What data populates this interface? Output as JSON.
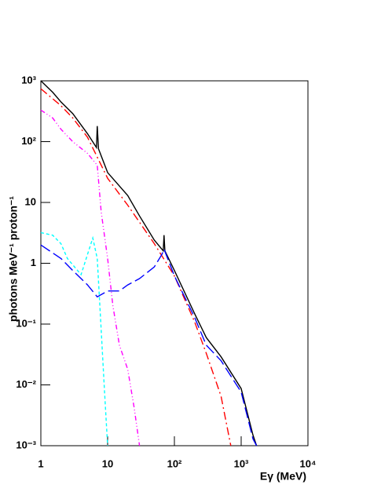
{
  "chart_data": {
    "type": "line",
    "xlabel": "Eγ (MeV)",
    "ylabel": "photons MeV⁻¹ proton⁻¹",
    "xscale": "log",
    "yscale": "log",
    "xlim": [
      1,
      10000
    ],
    "ylim": [
      0.001,
      1000
    ],
    "xticks": [
      1,
      10,
      {
        "value": 100,
        "label": "10²"
      },
      {
        "value": 1000,
        "label": "10³"
      },
      {
        "value": 10000,
        "label": "10⁴"
      }
    ],
    "yticks": [
      {
        "value": 0.001,
        "label": "10⁻³"
      },
      {
        "value": 0.01,
        "label": "10⁻²"
      },
      {
        "value": 0.1,
        "label": "10⁻¹"
      },
      1,
      10,
      {
        "value": 100,
        "label": "10²"
      },
      {
        "value": 1000,
        "label": "10³"
      }
    ],
    "series": [
      {
        "color": "#000000",
        "dash": "solid",
        "x": [
          1,
          1.5,
          2,
          3,
          5,
          6.8,
          7,
          7.3,
          10,
          20,
          30,
          50,
          68,
          70,
          72,
          100,
          200,
          300,
          500,
          1000,
          1500,
          1700
        ],
        "values": [
          1000,
          650,
          450,
          290,
          135,
          80,
          180,
          76,
          31,
          13,
          6,
          2.4,
          1.6,
          2.9,
          1.6,
          0.76,
          0.15,
          0.06,
          0.029,
          0.0087,
          0.0015,
          0.001
        ]
      },
      {
        "color": "#ff0000",
        "dash": "dashdot",
        "x": [
          1,
          2,
          3,
          5,
          10,
          20,
          50,
          100,
          200,
          300,
          500,
          700
        ],
        "values": [
          740,
          390,
          245,
          118,
          25,
          9,
          2.1,
          0.62,
          0.11,
          0.033,
          0.0065,
          0.001
        ]
      },
      {
        "color": "#ff00ff",
        "dash": "dashdotdot",
        "x": [
          1,
          1.5,
          2,
          3,
          5,
          7,
          8,
          10,
          12,
          15,
          20,
          25,
          30
        ],
        "values": [
          330,
          245,
          160,
          100,
          64,
          41,
          7,
          1.2,
          0.2,
          0.045,
          0.018,
          0.0042,
          0.001
        ]
      },
      {
        "color": "#00ffff",
        "dash": "dashed",
        "x": [
          1,
          1.5,
          2,
          2.5,
          4,
          5,
          6,
          7,
          8,
          9,
          10
        ],
        "values": [
          3.2,
          2.9,
          2.1,
          1.2,
          0.65,
          1.4,
          2.6,
          1.2,
          0.08,
          0.0076,
          0.001
        ]
      },
      {
        "color": "#0000ff",
        "dash": "longdash",
        "x": [
          1,
          2,
          3,
          5,
          7,
          10,
          15,
          20,
          30,
          50,
          65,
          70,
          100,
          200,
          300,
          500,
          1000,
          1500,
          1700
        ],
        "values": [
          2.0,
          1.2,
          0.76,
          0.44,
          0.28,
          0.35,
          0.35,
          0.44,
          0.56,
          0.87,
          1.4,
          1.7,
          0.62,
          0.13,
          0.045,
          0.025,
          0.0076,
          0.0013,
          0.001
        ]
      }
    ]
  }
}
